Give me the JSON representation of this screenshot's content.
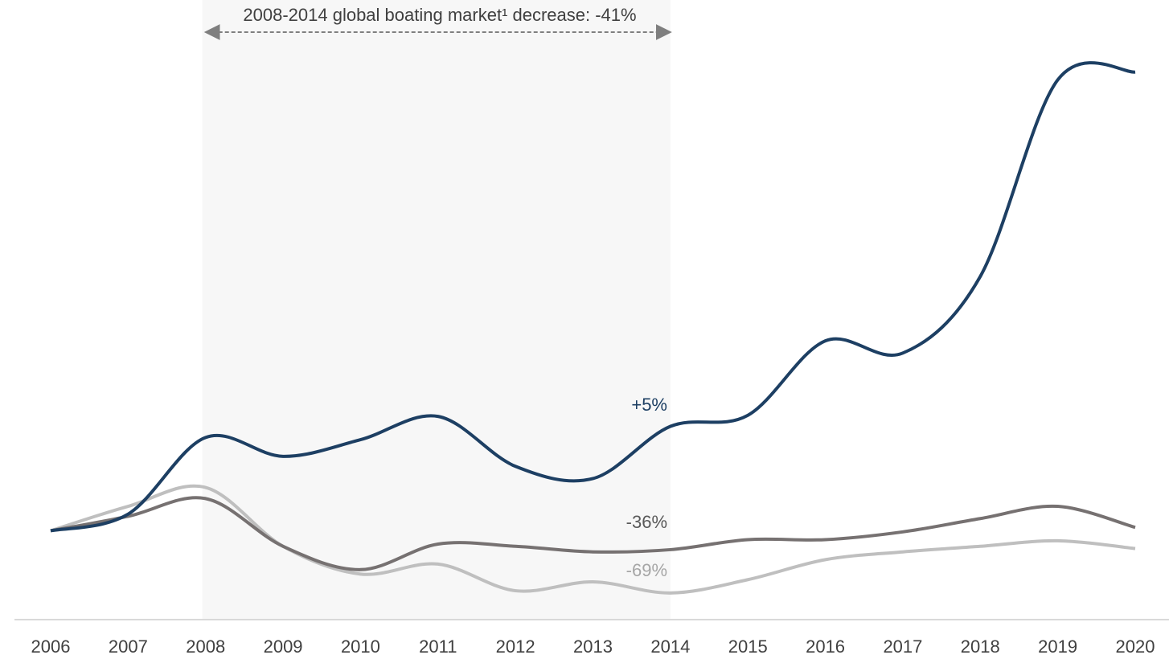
{
  "chart_data": {
    "type": "line",
    "annotation": "2008-2014 global boating market¹ decrease: -41%",
    "highlight": [
      "2008",
      "2014"
    ],
    "categories": [
      "2006",
      "2007",
      "2008",
      "2009",
      "2010",
      "2011",
      "2012",
      "2013",
      "2014",
      "2015",
      "2016",
      "2017",
      "2018",
      "2019",
      "2020"
    ],
    "ylim": [
      -80,
      420
    ],
    "series": [
      {
        "color": "#1d3f63",
        "change_label": "+5%",
        "values": [
          0,
          15,
          84,
          67,
          82,
          103,
          58,
          47,
          94,
          104,
          171,
          160,
          229,
          406,
          413
        ]
      },
      {
        "color": "#767171",
        "change_label": "-36%",
        "values": [
          0,
          13,
          29,
          -14,
          -35,
          -12,
          -14,
          -19,
          -17,
          -8,
          -8,
          -1,
          11,
          22,
          3
        ]
      },
      {
        "color": "#bfbfbf",
        "change_label": "-69%",
        "values": [
          0,
          22,
          39,
          -14,
          -39,
          -30,
          -54,
          -46,
          -56,
          -44,
          -26,
          -19,
          -14,
          -9,
          -16
        ]
      }
    ]
  }
}
